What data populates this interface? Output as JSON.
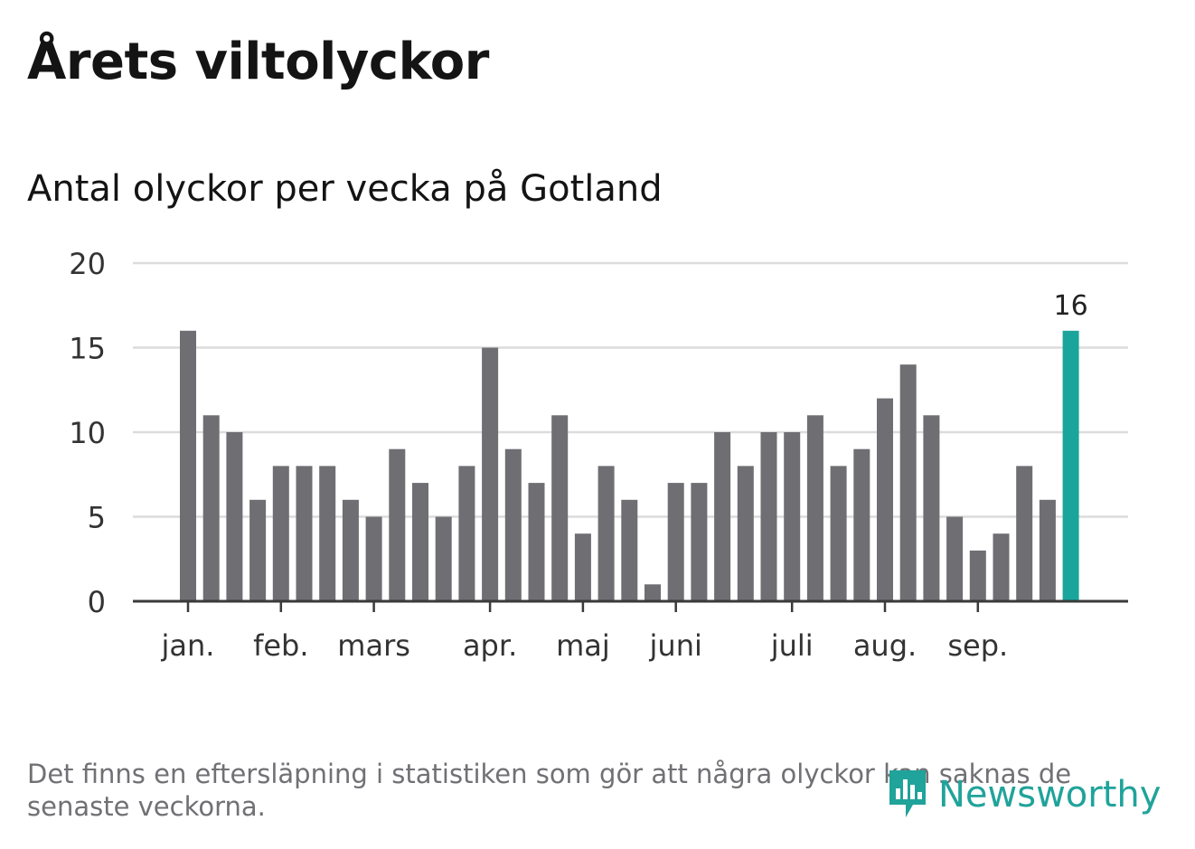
{
  "title": "Årets viltolyckor",
  "subtitle": "Antal olyckor per vecka på Gotland",
  "footnote": "Det finns en eftersläpning i statistiken som gör att några olyckor kan saknas de senaste veckorna.",
  "brand": {
    "name": "Newsworthy",
    "color": "#20a39a",
    "icon": "newsworthy-logo-icon"
  },
  "colors": {
    "bar": "#6e6e73",
    "highlight": "#1aa59c",
    "grid": "#dcdcdc",
    "axis": "#3a3a3a"
  },
  "chart_data": {
    "type": "bar",
    "title": "Antal olyckor per vecka på Gotland",
    "xlabel": "",
    "ylabel": "",
    "ylim": [
      0,
      20
    ],
    "yticks": [
      0,
      5,
      10,
      15,
      20
    ],
    "grid": true,
    "values": [
      16,
      11,
      10,
      6,
      8,
      8,
      8,
      6,
      5,
      9,
      7,
      5,
      8,
      15,
      9,
      7,
      11,
      4,
      8,
      6,
      1,
      7,
      7,
      10,
      8,
      10,
      10,
      11,
      8,
      9,
      12,
      14,
      11,
      5,
      3,
      4,
      8,
      6,
      16
    ],
    "highlight_index": 38,
    "highlight_label": "16",
    "month_labels": [
      {
        "label": "jan.",
        "bar_index": 0
      },
      {
        "label": "feb.",
        "bar_index": 4
      },
      {
        "label": "mars",
        "bar_index": 8
      },
      {
        "label": "apr.",
        "bar_index": 13
      },
      {
        "label": "maj",
        "bar_index": 17
      },
      {
        "label": "juni",
        "bar_index": 21
      },
      {
        "label": "juli",
        "bar_index": 26
      },
      {
        "label": "aug.",
        "bar_index": 30
      },
      {
        "label": "sep.",
        "bar_index": 34
      }
    ]
  }
}
